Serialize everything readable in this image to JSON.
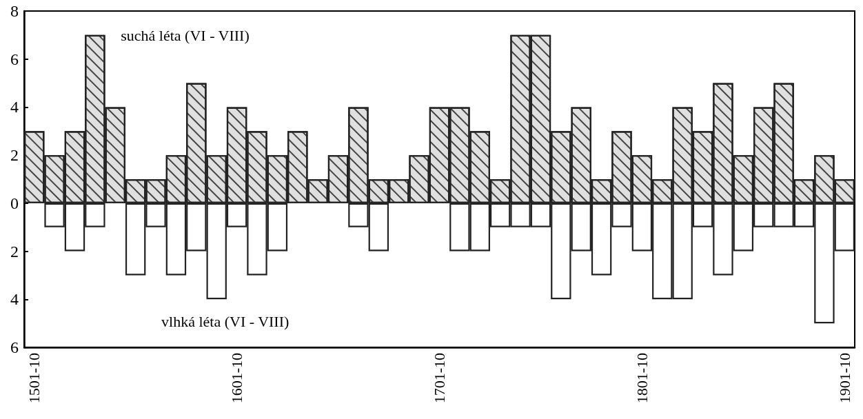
{
  "chart_data": {
    "type": "bar",
    "stacked": true,
    "categories": [
      "1501-10",
      null,
      null,
      null,
      null,
      null,
      null,
      null,
      null,
      null,
      "1601-10",
      null,
      null,
      null,
      null,
      null,
      null,
      null,
      null,
      null,
      "1701-10",
      null,
      null,
      null,
      null,
      null,
      null,
      null,
      null,
      null,
      "1801-10",
      null,
      null,
      null,
      null,
      null,
      null,
      null,
      null,
      null,
      "1901-10"
    ],
    "series": [
      {
        "name": "suchá léta (VI - VIII)",
        "color": "#e0e0e0",
        "values": [
          3,
          2,
          3,
          7,
          4,
          1,
          1,
          2,
          5,
          2,
          4,
          3,
          2,
          3,
          1,
          2,
          4,
          1,
          1,
          2,
          4,
          4,
          3,
          1,
          7,
          7,
          3,
          4,
          1,
          3,
          2,
          1,
          4,
          3,
          5,
          2,
          4,
          5,
          1,
          2,
          1
        ]
      },
      {
        "name": "vlhká léta (VI - VIII)",
        "color": "#ffffff",
        "values": [
          0,
          -1,
          -2,
          -1,
          0,
          -3,
          -1,
          -3,
          -2,
          -4,
          -1,
          -3,
          -2,
          0,
          0,
          0,
          -1,
          -2,
          0,
          0,
          0,
          -2,
          -2,
          -1,
          -1,
          -1,
          -4,
          -2,
          -3,
          -1,
          -2,
          -4,
          -4,
          -1,
          -3,
          -2,
          -1,
          -1,
          -1,
          -5,
          -2
        ]
      }
    ],
    "ylim": [
      -6,
      8
    ],
    "yticks": [
      {
        "value": -6,
        "label": "6"
      },
      {
        "value": -4,
        "label": "4"
      },
      {
        "value": -2,
        "label": "2"
      },
      0,
      2,
      4,
      6,
      8
    ],
    "grid": false,
    "legend": false
  }
}
